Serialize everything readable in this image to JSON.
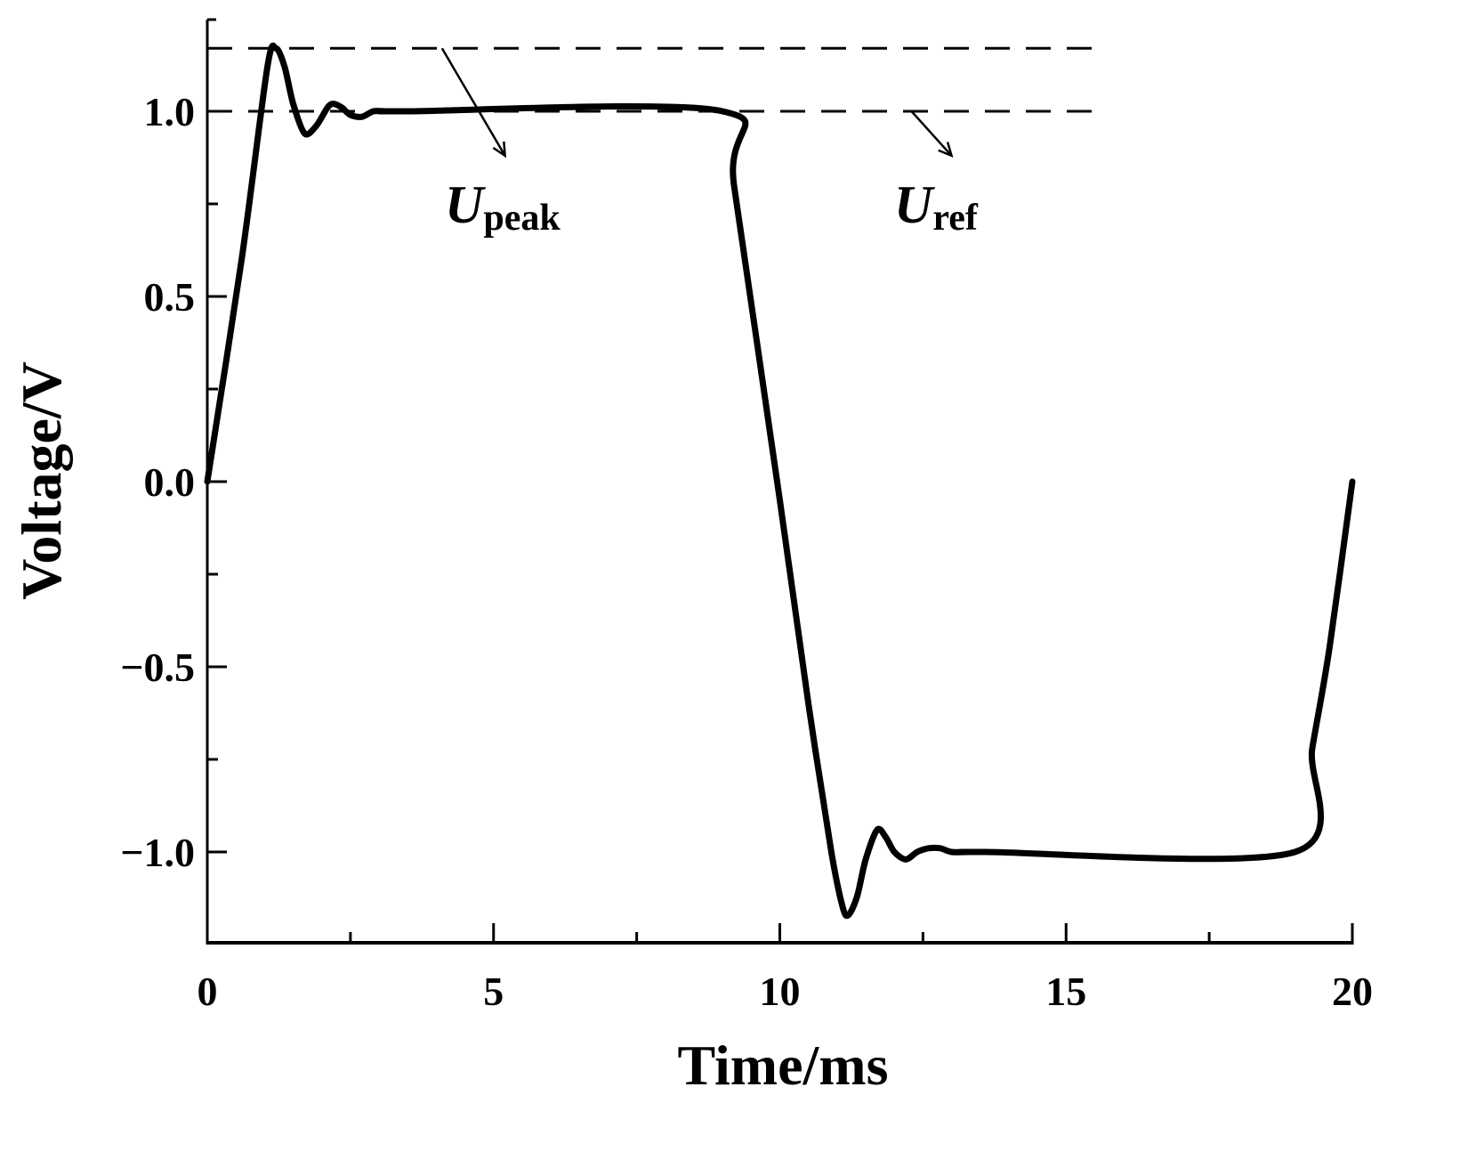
{
  "chart_data": {
    "type": "line",
    "title": "",
    "xlabel": "Time/ms",
    "ylabel": "Voltage/V",
    "xlim": [
      0,
      20
    ],
    "ylim": [
      -1.25,
      1.25
    ],
    "grid": false,
    "legend": null,
    "x_ticks": [
      0,
      5,
      10,
      15,
      20
    ],
    "x_tick_labels": [
      "0",
      "5",
      "10",
      "15",
      "20"
    ],
    "x_minor_ticks": [
      2.5,
      7.5,
      12.5,
      17.5
    ],
    "y_ticks": [
      -1.0,
      -0.5,
      0.0,
      0.5,
      1.0
    ],
    "y_tick_labels": [
      "−1.0",
      "−0.5",
      "0.0",
      "0.5",
      "1.0"
    ],
    "y_minor_ticks": [
      -0.75,
      -0.25,
      0.25,
      0.75
    ],
    "series": [
      {
        "name": "Voltage",
        "color": "#000000",
        "x": [
          0,
          0.6,
          1.05,
          1.2,
          1.35,
          1.5,
          1.7,
          1.9,
          2.1,
          2.2,
          2.35,
          2.5,
          2.7,
          2.9,
          3.1,
          3.5,
          9.0,
          9.2,
          10.0,
          10.5,
          10.9,
          11.1,
          11.2,
          11.35,
          11.5,
          11.7,
          11.85,
          12.0,
          12.2,
          12.4,
          12.6,
          12.8,
          13.0,
          13.3,
          13.6,
          19.0,
          19.3,
          19.6,
          20.0
        ],
        "y": [
          0.0,
          0.6,
          1.12,
          1.17,
          1.12,
          1.02,
          0.94,
          0.96,
          1.01,
          1.02,
          1.01,
          0.99,
          0.985,
          1.0,
          1.0,
          1.0,
          1.0,
          0.8,
          -0.05,
          -0.6,
          -1.0,
          -1.15,
          -1.17,
          -1.12,
          -1.02,
          -0.94,
          -0.96,
          -1.0,
          -1.02,
          -1.0,
          -0.99,
          -0.99,
          -1.0,
          -1.0,
          -1.0,
          -1.0,
          -0.72,
          -0.45,
          0.0
        ]
      }
    ],
    "reference_lines": [
      {
        "name": "U_peak",
        "y": 1.17,
        "style": "dashed",
        "x_end": 15
      },
      {
        "name": "U_ref",
        "y": 1.0,
        "style": "dashed",
        "x_end": 15
      }
    ],
    "annotations": [
      {
        "label_main": "U",
        "label_sub": "peak",
        "text": "U_peak",
        "arrow_from": [
          4.1,
          1.17
        ],
        "arrow_to": [
          5.2,
          0.88
        ]
      },
      {
        "label_main": "U",
        "label_sub": "ref",
        "text": "U_ref",
        "arrow_from": [
          12.3,
          1.0
        ],
        "arrow_to": [
          13.0,
          0.88
        ]
      }
    ]
  },
  "labels": {
    "xlabel": "Time/ms",
    "ylabel": "Voltage/V",
    "upeak_main": "U",
    "upeak_sub": "peak",
    "uref_main": "U",
    "uref_sub": "ref"
  }
}
